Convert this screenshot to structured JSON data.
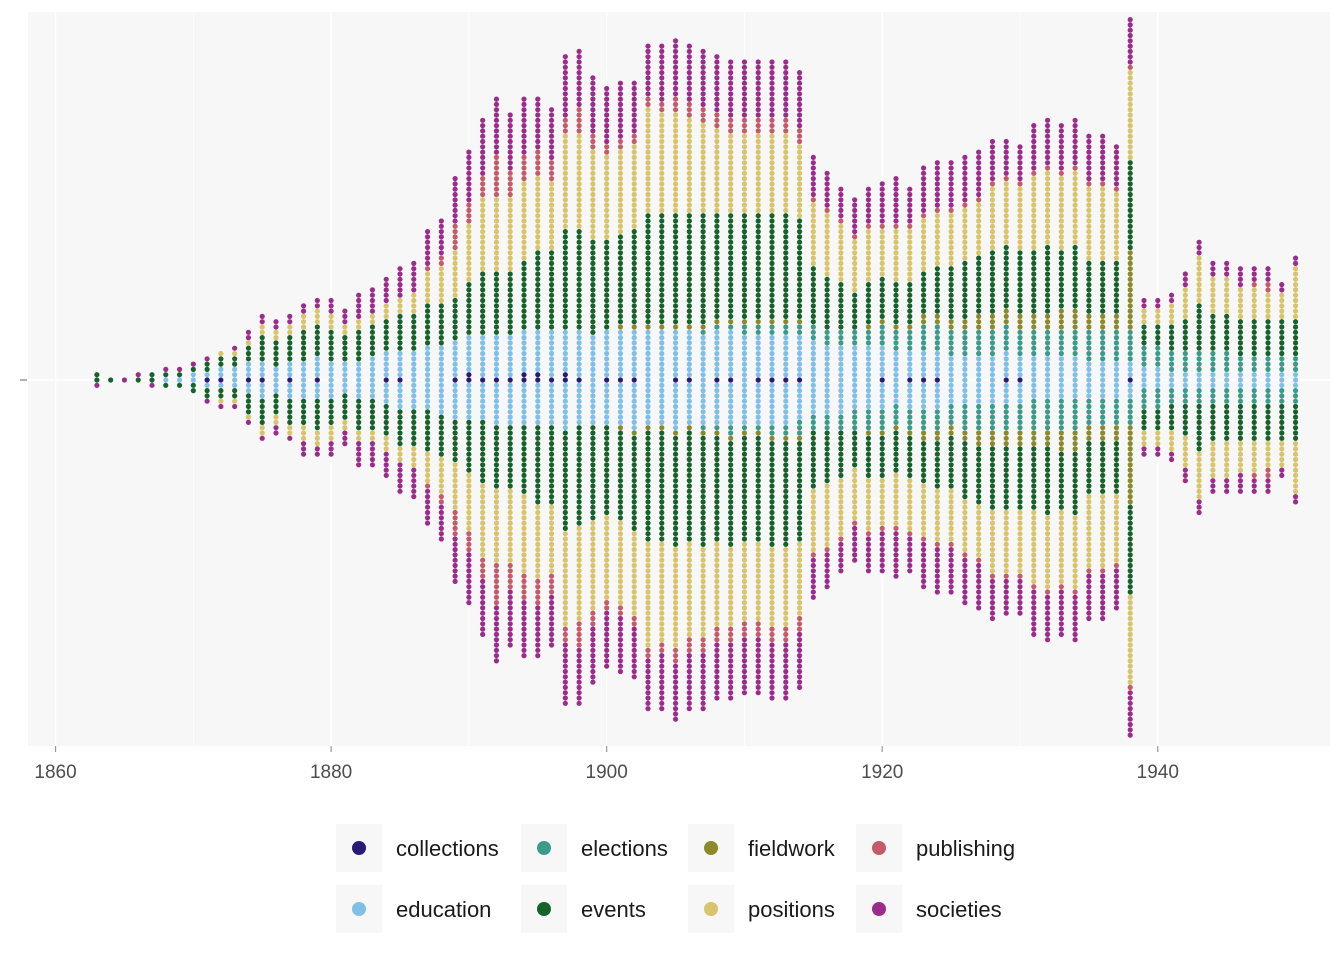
{
  "chart_data": {
    "type": "scatter",
    "subtype": "beeswarm-dotplot",
    "title": "",
    "xlabel": "",
    "ylabel": "",
    "xlim": [
      1858,
      1952.5
    ],
    "x_ticks": [
      1860,
      1880,
      1900,
      1920,
      1940
    ],
    "x_tick_labels": [
      "1860",
      "1880",
      "1900",
      "1920",
      "1940"
    ],
    "grid": true,
    "legend_position": "bottom",
    "categories": [
      "collections",
      "education",
      "elections",
      "events",
      "fieldwork",
      "positions",
      "publishing",
      "societies"
    ],
    "colors": {
      "collections": "#2a1a78",
      "education": "#7fc0e8",
      "elections": "#3a9b8a",
      "events": "#16622b",
      "fieldwork": "#8b8a2a",
      "positions": "#d8c46a",
      "publishing": "#c45a6a",
      "societies": "#9c2c8c"
    },
    "stack_order": [
      "collections",
      "education",
      "elections",
      "fieldwork",
      "events",
      "positions",
      "publishing",
      "societies"
    ],
    "years": [
      1863,
      1864,
      1865,
      1866,
      1867,
      1868,
      1869,
      1870,
      1871,
      1872,
      1873,
      1874,
      1875,
      1876,
      1877,
      1878,
      1879,
      1880,
      1881,
      1882,
      1883,
      1884,
      1885,
      1886,
      1887,
      1888,
      1889,
      1890,
      1891,
      1892,
      1893,
      1894,
      1895,
      1896,
      1897,
      1898,
      1899,
      1900,
      1901,
      1902,
      1903,
      1904,
      1905,
      1906,
      1907,
      1908,
      1909,
      1910,
      1911,
      1912,
      1913,
      1914,
      1915,
      1916,
      1917,
      1918,
      1919,
      1920,
      1921,
      1922,
      1923,
      1924,
      1925,
      1926,
      1927,
      1928,
      1929,
      1930,
      1931,
      1932,
      1933,
      1934,
      1935,
      1936,
      1937,
      1938,
      1939,
      1940,
      1941,
      1942,
      1943,
      1944,
      1945,
      1946,
      1947,
      1948,
      1949,
      1950
    ],
    "series": [
      {
        "name": "collections",
        "values": [
          0,
          0,
          0,
          0,
          0,
          0,
          0,
          0,
          1,
          1,
          0,
          1,
          1,
          0,
          1,
          0,
          1,
          0,
          0,
          0,
          0,
          1,
          1,
          0,
          0,
          0,
          1,
          2,
          1,
          1,
          1,
          2,
          2,
          1,
          2,
          1,
          0,
          1,
          1,
          1,
          0,
          0,
          1,
          1,
          0,
          1,
          1,
          0,
          1,
          1,
          1,
          1,
          0,
          0,
          0,
          0,
          0,
          1,
          0,
          1,
          1,
          1,
          0,
          0,
          0,
          0,
          1,
          1,
          0,
          0,
          0,
          0,
          0,
          0,
          0,
          1,
          0,
          0,
          0,
          0,
          0,
          0,
          0,
          0,
          0,
          0,
          0,
          0
        ]
      },
      {
        "name": "education",
        "values": [
          0,
          0,
          0,
          0,
          0,
          1,
          1,
          2,
          2,
          3,
          4,
          5,
          6,
          5,
          6,
          7,
          7,
          7,
          6,
          7,
          8,
          9,
          10,
          11,
          12,
          13,
          14,
          14,
          15,
          16,
          16,
          16,
          16,
          17,
          17,
          17,
          17,
          17,
          17,
          18,
          18,
          18,
          18,
          17,
          17,
          17,
          17,
          17,
          16,
          16,
          16,
          15,
          14,
          13,
          13,
          12,
          12,
          11,
          10,
          10,
          10,
          10,
          9,
          9,
          9,
          9,
          9,
          8,
          8,
          8,
          8,
          8,
          7,
          7,
          7,
          6,
          4,
          4,
          3,
          3,
          3,
          3,
          3,
          3,
          3,
          3,
          3,
          3
        ]
      },
      {
        "name": "elections",
        "values": [
          0,
          0,
          0,
          0,
          0,
          0,
          0,
          0,
          0,
          0,
          0,
          0,
          0,
          0,
          0,
          0,
          0,
          0,
          0,
          0,
          0,
          0,
          0,
          0,
          0,
          0,
          0,
          0,
          0,
          0,
          0,
          0,
          0,
          0,
          0,
          0,
          0,
          0,
          0,
          0,
          0,
          0,
          0,
          0,
          2,
          2,
          3,
          3,
          3,
          4,
          4,
          5,
          6,
          6,
          6,
          7,
          7,
          8,
          8,
          8,
          9,
          9,
          9,
          10,
          10,
          10,
          10,
          10,
          11,
          11,
          11,
          11,
          11,
          11,
          11,
          11,
          8,
          8,
          7,
          7,
          7,
          7,
          7,
          6,
          6,
          6,
          6,
          6
        ]
      },
      {
        "name": "fieldwork",
        "values": [
          0,
          0,
          0,
          0,
          0,
          0,
          0,
          0,
          0,
          0,
          0,
          0,
          0,
          0,
          0,
          0,
          0,
          0,
          0,
          0,
          0,
          0,
          0,
          0,
          0,
          0,
          0,
          0,
          0,
          0,
          0,
          0,
          0,
          0,
          0,
          0,
          0,
          0,
          2,
          2,
          2,
          2,
          2,
          2,
          2,
          2,
          2,
          2,
          2,
          2,
          2,
          2,
          0,
          0,
          0,
          0,
          2,
          2,
          2,
          2,
          4,
          4,
          4,
          4,
          6,
          6,
          6,
          6,
          6,
          6,
          8,
          8,
          6,
          6,
          6,
          30,
          0,
          0,
          0,
          0,
          0,
          0,
          0,
          0,
          0,
          0,
          0,
          0
        ]
      },
      {
        "name": "events",
        "values": [
          2,
          1,
          0,
          1,
          2,
          2,
          2,
          3,
          4,
          4,
          4,
          7,
          10,
          9,
          10,
          11,
          12,
          11,
          10,
          12,
          12,
          12,
          14,
          14,
          16,
          16,
          16,
          20,
          24,
          24,
          24,
          26,
          30,
          30,
          38,
          38,
          36,
          34,
          34,
          36,
          42,
          42,
          42,
          42,
          42,
          40,
          40,
          40,
          40,
          40,
          40,
          38,
          22,
          20,
          18,
          14,
          16,
          16,
          16,
          16,
          16,
          18,
          20,
          22,
          22,
          24,
          24,
          24,
          24,
          26,
          22,
          24,
          20,
          20,
          20,
          34,
          8,
          8,
          10,
          12,
          18,
          14,
          14,
          14,
          14,
          14,
          14,
          14
        ]
      },
      {
        "name": "positions",
        "values": [
          0,
          0,
          0,
          0,
          0,
          0,
          0,
          0,
          0,
          2,
          2,
          2,
          4,
          4,
          4,
          6,
          6,
          6,
          4,
          4,
          4,
          6,
          6,
          8,
          12,
          14,
          18,
          22,
          28,
          28,
          28,
          30,
          28,
          26,
          36,
          36,
          34,
          32,
          32,
          32,
          40,
          38,
          38,
          36,
          34,
          32,
          30,
          30,
          30,
          30,
          30,
          28,
          24,
          24,
          22,
          20,
          20,
          18,
          20,
          20,
          20,
          20,
          20,
          20,
          20,
          24,
          24,
          24,
          28,
          28,
          28,
          28,
          28,
          28,
          26,
          34,
          6,
          6,
          8,
          12,
          18,
          14,
          14,
          12,
          12,
          10,
          10,
          20
        ]
      },
      {
        "name": "publishing",
        "values": [
          0,
          0,
          0,
          0,
          0,
          0,
          0,
          0,
          0,
          0,
          0,
          0,
          0,
          0,
          0,
          0,
          0,
          0,
          0,
          0,
          0,
          0,
          0,
          0,
          2,
          4,
          10,
          8,
          8,
          16,
          10,
          10,
          10,
          8,
          6,
          10,
          6,
          4,
          4,
          4,
          4,
          4,
          6,
          6,
          6,
          6,
          6,
          6,
          6,
          6,
          6,
          6,
          2,
          2,
          2,
          2,
          2,
          2,
          2,
          2,
          2,
          2,
          2,
          2,
          2,
          2,
          2,
          2,
          2,
          2,
          2,
          2,
          2,
          2,
          2,
          2,
          0,
          0,
          0,
          0,
          0,
          0,
          0,
          0,
          2,
          4,
          0,
          0
        ]
      },
      {
        "name": "societies",
        "values": [
          1,
          0,
          1,
          1,
          1,
          1,
          1,
          1,
          2,
          1,
          2,
          3,
          3,
          4,
          3,
          5,
          4,
          6,
          6,
          10,
          10,
          10,
          12,
          12,
          14,
          14,
          18,
          20,
          22,
          22,
          22,
          22,
          20,
          20,
          24,
          22,
          22,
          22,
          22,
          20,
          20,
          22,
          22,
          22,
          22,
          22,
          22,
          22,
          22,
          22,
          22,
          22,
          16,
          14,
          12,
          14,
          14,
          16,
          18,
          14,
          18,
          18,
          18,
          18,
          18,
          16,
          14,
          14,
          18,
          18,
          18,
          18,
          18,
          18,
          16,
          18,
          4,
          4,
          4,
          6,
          6,
          6,
          6,
          8,
          6,
          6,
          4,
          4
        ]
      }
    ]
  }
}
